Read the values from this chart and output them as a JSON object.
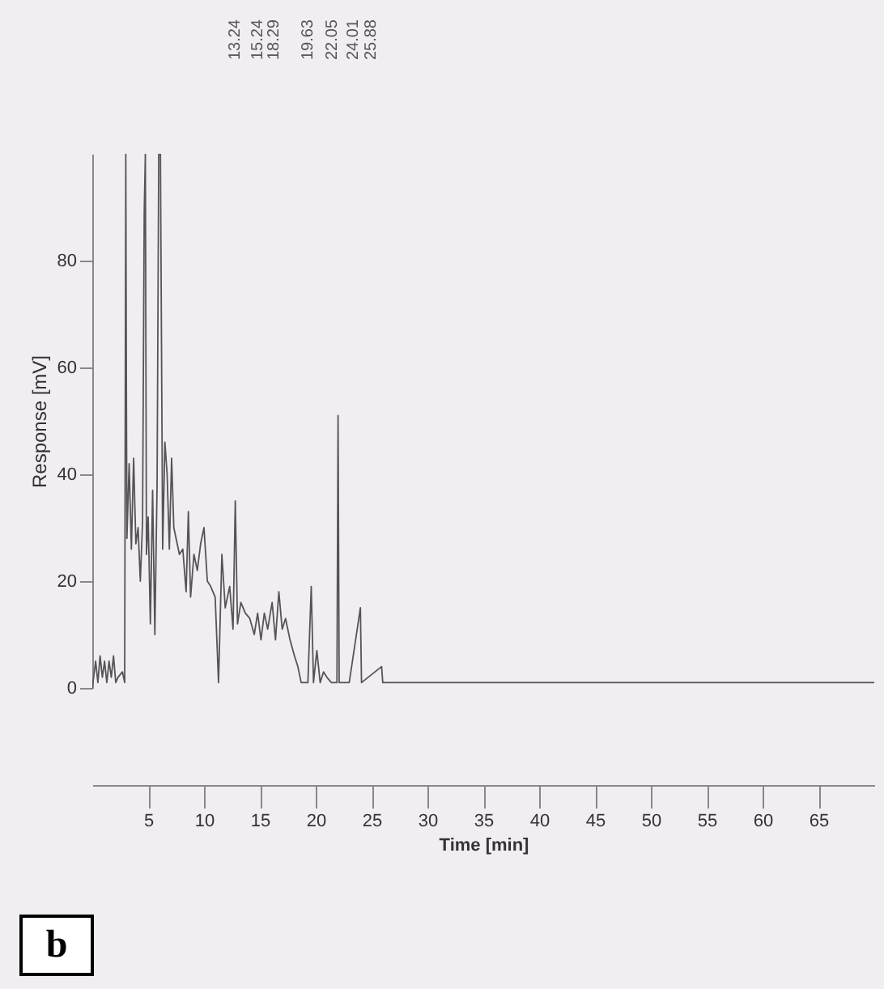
{
  "chart_data": {
    "type": "line",
    "xlabel": "Time [min]",
    "ylabel": "Response [mV]",
    "x": [
      0,
      0.3,
      0.5,
      0.7,
      0.9,
      1.1,
      1.3,
      1.5,
      1.7,
      1.9,
      2.1,
      2.3,
      2.7,
      2.9,
      3.0,
      3.05,
      3.1,
      3.3,
      3.5,
      3.7,
      3.9,
      4.1,
      4.3,
      4.5,
      4.65,
      4.75,
      4.85,
      5.0,
      5.2,
      5.4,
      5.6,
      5.8,
      5.95,
      6.1,
      6.3,
      6.5,
      6.7,
      6.9,
      7.1,
      7.3,
      7.5,
      7.8,
      8.1,
      8.4,
      8.6,
      8.8,
      9.1,
      9.4,
      9.7,
      10.0,
      10.3,
      10.6,
      11.0,
      11.3,
      11.6,
      11.9,
      12.3,
      12.6,
      12.8,
      13.0,
      13.3,
      13.7,
      14.1,
      14.5,
      14.8,
      15.1,
      15.4,
      15.7,
      16.1,
      16.4,
      16.7,
      17.0,
      17.3,
      17.7,
      18.1,
      18.4,
      18.7,
      19.0,
      19.3,
      19.6,
      19.8,
      20.1,
      20.4,
      20.7,
      21.0,
      21.4,
      21.9,
      22.0,
      22.1,
      23.0,
      24.0,
      24.1,
      25.9,
      26.0,
      30,
      40,
      50,
      60,
      70
    ],
    "series": [
      {
        "color": "#555555",
        "values": [
          0,
          5,
          1,
          6,
          2,
          5,
          1,
          5,
          2,
          6,
          1,
          2,
          3,
          1,
          100,
          58,
          28,
          42,
          26,
          43,
          27,
          30,
          20,
          31,
          89,
          100,
          25,
          32,
          12,
          37,
          10,
          38,
          100,
          100,
          26,
          46,
          40,
          26,
          43,
          30,
          28,
          25,
          26,
          18,
          33,
          17,
          25,
          22,
          27,
          30,
          20,
          19,
          17,
          1,
          25,
          15,
          19,
          11,
          35,
          12,
          16,
          14,
          13,
          10,
          14,
          9,
          14,
          11,
          16,
          9,
          18,
          11,
          13,
          9,
          6,
          4,
          1,
          1,
          1,
          19,
          1,
          7,
          1,
          3,
          2,
          1,
          1,
          51,
          1,
          1,
          15,
          1,
          4,
          1,
          1,
          1,
          1,
          1,
          1
        ]
      }
    ],
    "xlim": [
      0,
      70
    ],
    "ylim": [
      0,
      100
    ],
    "xticks": [
      5,
      10,
      15,
      20,
      25,
      30,
      35,
      40,
      45,
      50,
      55,
      60,
      65
    ],
    "yticks": [
      0,
      20,
      40,
      60,
      80
    ],
    "grid": false,
    "annotations": [
      "13.24",
      "15.24",
      "18.29",
      "19.63",
      "22.05",
      "24.01",
      "25.88",
      "b"
    ]
  }
}
